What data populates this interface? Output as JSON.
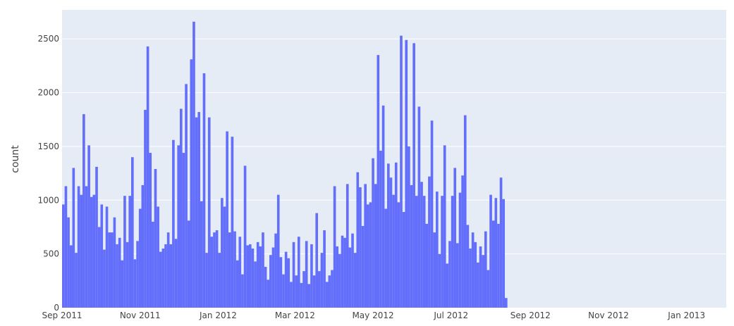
{
  "colors": {
    "plot_background": "#E5ECF6",
    "bar_fill": "#636EFA",
    "gridline": "#ffffff",
    "text": "#444444"
  },
  "chart_data": {
    "type": "bar",
    "title": "",
    "xlabel": "",
    "ylabel": "count",
    "bin_size_days": 2,
    "x_range": [
      "2011-09-01",
      "2013-02-01"
    ],
    "ylim": [
      0,
      2770
    ],
    "x_ticks": [
      {
        "date": "2011-09-01",
        "label": "Sep 2011"
      },
      {
        "date": "2011-11-01",
        "label": "Nov 2011"
      },
      {
        "date": "2012-01-01",
        "label": "Jan 2012"
      },
      {
        "date": "2012-03-01",
        "label": "Mar 2012"
      },
      {
        "date": "2012-05-01",
        "label": "May 2012"
      },
      {
        "date": "2012-07-01",
        "label": "Jul 2012"
      },
      {
        "date": "2012-09-01",
        "label": "Sep 2012"
      },
      {
        "date": "2012-11-01",
        "label": "Nov 2012"
      },
      {
        "date": "2013-01-01",
        "label": "Jan 2013"
      }
    ],
    "y_ticks": [
      {
        "value": 0,
        "label": "0"
      },
      {
        "value": 500,
        "label": "500"
      },
      {
        "value": 1000,
        "label": "1000"
      },
      {
        "value": 1500,
        "label": "1500"
      },
      {
        "value": 2000,
        "label": "2000"
      },
      {
        "value": 2500,
        "label": "2500"
      }
    ],
    "grid": true,
    "x_start": "2011-09-01",
    "values": [
      960,
      1130,
      840,
      580,
      1300,
      510,
      1130,
      1050,
      1800,
      1130,
      1510,
      1030,
      1050,
      1310,
      750,
      960,
      540,
      940,
      700,
      700,
      840,
      590,
      650,
      440,
      1040,
      610,
      1040,
      1400,
      450,
      620,
      920,
      1140,
      1840,
      2430,
      1440,
      800,
      1290,
      940,
      520,
      550,
      590,
      700,
      590,
      1560,
      640,
      1510,
      1850,
      1440,
      2080,
      810,
      2310,
      2660,
      1770,
      1820,
      990,
      2180,
      510,
      1770,
      660,
      700,
      720,
      510,
      1020,
      940,
      1640,
      700,
      1590,
      710,
      440,
      660,
      310,
      1320,
      580,
      590,
      550,
      430,
      610,
      570,
      700,
      380,
      260,
      490,
      560,
      690,
      1050,
      470,
      310,
      520,
      460,
      240,
      610,
      300,
      660,
      230,
      340,
      620,
      220,
      590,
      300,
      880,
      340,
      510,
      720,
      240,
      300,
      350,
      1130,
      570,
      500,
      670,
      650,
      1150,
      560,
      690,
      510,
      1260,
      1120,
      760,
      1150,
      960,
      980,
      1390,
      1150,
      2350,
      1460,
      1880,
      920,
      1340,
      1210,
      1050,
      1350,
      980,
      2530,
      890,
      2490,
      1500,
      1140,
      2460,
      1040,
      1870,
      1170,
      1040,
      780,
      1220,
      1740,
      700,
      1080,
      500,
      1040,
      1510,
      410,
      620,
      1040,
      1300,
      600,
      1070,
      1230,
      1790,
      770,
      550,
      700,
      610,
      420,
      570,
      490,
      710,
      350,
      1050,
      810,
      1020,
      780,
      1210,
      1010,
      90
    ]
  }
}
